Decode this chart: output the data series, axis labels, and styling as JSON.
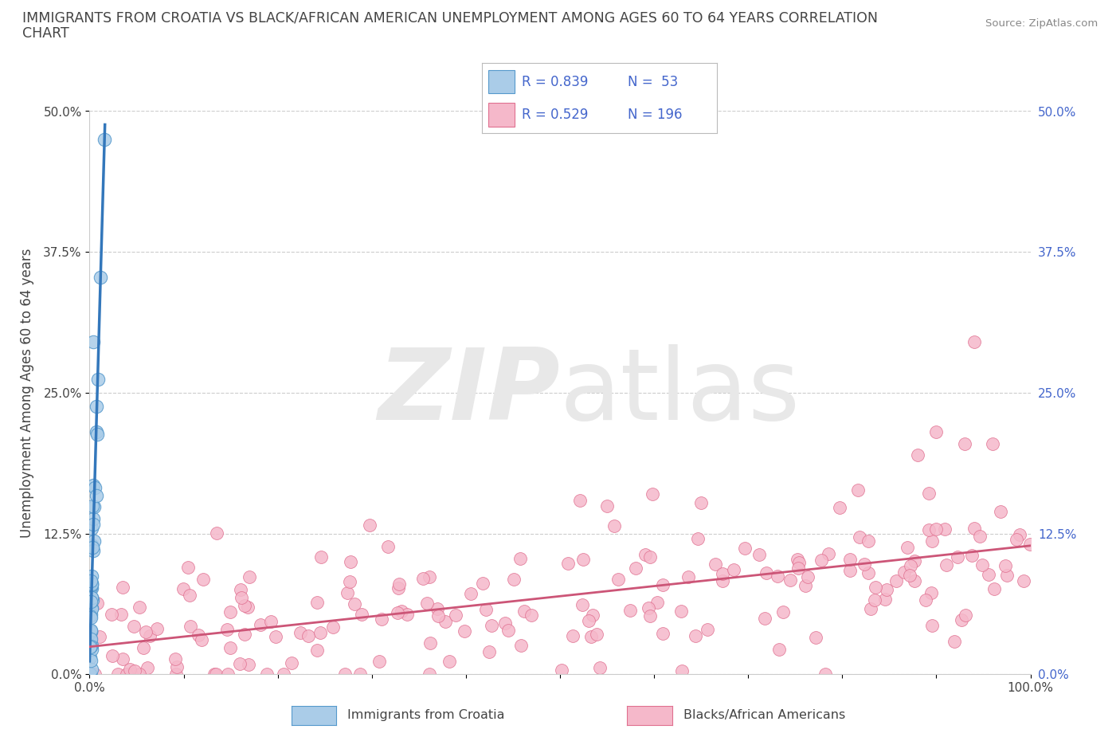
{
  "title_line1": "IMMIGRANTS FROM CROATIA VS BLACK/AFRICAN AMERICAN UNEMPLOYMENT AMONG AGES 60 TO 64 YEARS CORRELATION",
  "title_line2": "CHART",
  "source_text": "Source: ZipAtlas.com",
  "ylabel": "Unemployment Among Ages 60 to 64 years",
  "xlim": [
    0.0,
    1.0
  ],
  "ylim": [
    0.0,
    0.5
  ],
  "yticks": [
    0.0,
    0.125,
    0.25,
    0.375,
    0.5
  ],
  "ytick_labels_left": [
    "0.0%",
    "12.5%",
    "25.0%",
    "37.5%",
    "50.0%"
  ],
  "ytick_labels_right": [
    "0.0%",
    "12.5%",
    "25.0%",
    "37.5%",
    "50.0%"
  ],
  "xtick_labels": [
    "0.0%",
    "",
    "",
    "",
    "",
    "",
    "",
    "",
    "",
    "",
    "100.0%"
  ],
  "croatia_R": 0.839,
  "croatia_N": 53,
  "black_R": 0.529,
  "black_N": 196,
  "croatia_color": "#aacce8",
  "croatia_edge_color": "#5599cc",
  "croatia_line_color": "#3377bb",
  "black_color": "#f5b8ca",
  "black_edge_color": "#e07090",
  "black_line_color": "#cc5577",
  "background_color": "#ffffff",
  "grid_color": "#cccccc",
  "title_color": "#444444",
  "left_tick_color": "#444444",
  "right_tick_color": "#4466cc",
  "source_color": "#888888",
  "legend_text_color": "#4466cc",
  "watermark_color": "#e8e8e8"
}
